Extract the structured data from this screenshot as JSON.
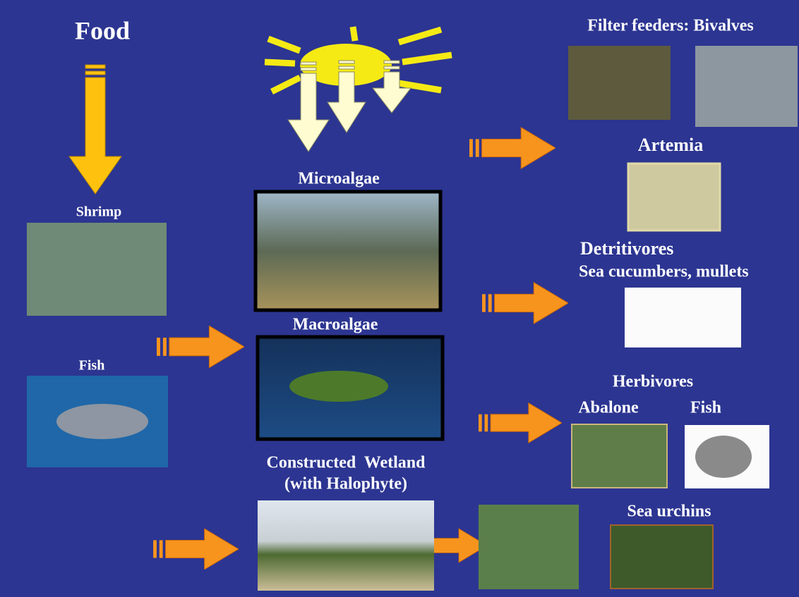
{
  "nodes": [
    {
      "label": "Food"
    },
    {
      "label": "Filter feeders: Bivalves"
    },
    {
      "label": "Artemia"
    },
    {
      "label": "Microalgae"
    },
    {
      "label": "Shrimp"
    },
    {
      "label": "Detritivores"
    },
    {
      "label": "Sea cucumbers, mullets"
    },
    {
      "label": "Macroalgae"
    },
    {
      "label": "Fish"
    },
    {
      "label": "Herbivores"
    },
    {
      "label": "Abalone"
    },
    {
      "label": "Fish"
    },
    {
      "label": "Constructed  Wetland"
    },
    {
      "label": "(with Halophyte)"
    },
    {
      "label": "Sea urchins"
    }
  ]
}
